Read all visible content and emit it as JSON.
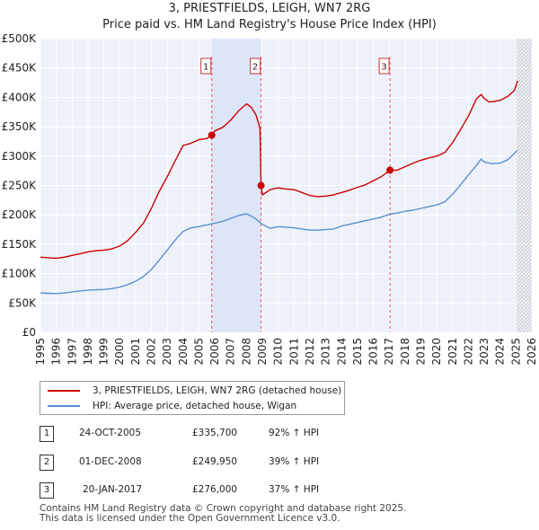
{
  "chart_data": {
    "type": "line",
    "title": "3, PRIESTFIELDS, LEIGH, WN7 2RG",
    "subtitle": "Price paid vs. HM Land Registry's House Price Index (HPI)",
    "xlim": [
      1995,
      2026
    ],
    "ylim": [
      0,
      500000
    ],
    "x_ticks": [
      1995,
      1996,
      1997,
      1998,
      1999,
      2000,
      2001,
      2002,
      2003,
      2004,
      2005,
      2006,
      2007,
      2008,
      2009,
      2010,
      2011,
      2012,
      2013,
      2014,
      2015,
      2016,
      2017,
      2018,
      2019,
      2020,
      2021,
      2022,
      2023,
      2024,
      2025,
      2026
    ],
    "y_ticks": [
      0,
      50000,
      100000,
      150000,
      200000,
      250000,
      300000,
      350000,
      400000,
      450000,
      500000
    ],
    "y_tick_labels": [
      "£0",
      "£50K",
      "£100K",
      "£150K",
      "£200K",
      "£250K",
      "£300K",
      "£350K",
      "£400K",
      "£450K",
      "£500K"
    ],
    "shaded_periods": [
      [
        2005.81,
        2008.92
      ]
    ],
    "future_hatch_start": 2025.0,
    "series": [
      {
        "name": "3, PRIESTFIELDS, LEIGH, WN7 2RG (detached house)",
        "color": "#cc0000",
        "x": [
          1995.0,
          1995.5,
          1996.0,
          1996.5,
          1997.0,
          1997.5,
          1998.0,
          1998.5,
          1999.0,
          1999.5,
          2000.0,
          2000.5,
          2001.0,
          2001.5,
          2002.0,
          2002.5,
          2003.0,
          2003.5,
          2004.0,
          2004.5,
          2005.0,
          2005.5,
          2005.81,
          2006.0,
          2006.5,
          2007.0,
          2007.5,
          2008.0,
          2008.3,
          2008.6,
          2008.85,
          2008.92,
          2009.0,
          2009.5,
          2010.0,
          2010.5,
          2011.0,
          2011.5,
          2012.0,
          2012.5,
          2013.0,
          2013.5,
          2014.0,
          2014.5,
          2015.0,
          2015.5,
          2016.0,
          2016.5,
          2017.05,
          2017.5,
          2018.0,
          2018.5,
          2019.0,
          2019.5,
          2020.0,
          2020.5,
          2021.0,
          2021.5,
          2022.0,
          2022.5,
          2022.8,
          2023.0,
          2023.3,
          2023.6,
          2024.0,
          2024.5,
          2024.9,
          2025.1
        ],
        "values": [
          128000,
          127000,
          126000,
          128000,
          131000,
          134000,
          137000,
          139000,
          140000,
          142000,
          147000,
          156000,
          170000,
          186000,
          211000,
          240000,
          265000,
          292000,
          318000,
          322000,
          328000,
          330000,
          335700,
          343000,
          349000,
          361000,
          377000,
          389000,
          383000,
          370000,
          348000,
          249950,
          234000,
          243000,
          246000,
          244000,
          243000,
          238000,
          233000,
          231000,
          232000,
          234000,
          238000,
          242000,
          247000,
          251000,
          258000,
          265000,
          276000,
          276000,
          282000,
          288000,
          293000,
          297000,
          300000,
          306000,
          323000,
          345000,
          368000,
          397000,
          405000,
          398000,
          392000,
          393000,
          395000,
          402000,
          412000,
          428000
        ]
      },
      {
        "name": "HPI: Average price, detached house, Wigan",
        "color": "#5b8fcf",
        "x": [
          1995.0,
          1995.5,
          1996.0,
          1996.5,
          1997.0,
          1997.5,
          1998.0,
          1998.5,
          1999.0,
          1999.5,
          2000.0,
          2000.5,
          2001.0,
          2001.5,
          2002.0,
          2002.5,
          2003.0,
          2003.5,
          2004.0,
          2004.5,
          2005.0,
          2005.5,
          2006.0,
          2006.5,
          2007.0,
          2007.5,
          2008.0,
          2008.5,
          2009.0,
          2009.5,
          2010.0,
          2010.5,
          2011.0,
          2011.5,
          2012.0,
          2012.5,
          2013.0,
          2013.5,
          2014.0,
          2014.5,
          2015.0,
          2015.5,
          2016.0,
          2016.5,
          2017.0,
          2017.5,
          2018.0,
          2018.5,
          2019.0,
          2019.5,
          2020.0,
          2020.5,
          2021.0,
          2021.5,
          2022.0,
          2022.5,
          2022.8,
          2023.0,
          2023.5,
          2024.0,
          2024.5,
          2025.1
        ],
        "values": [
          67000,
          66500,
          66000,
          67000,
          69000,
          70500,
          72000,
          72500,
          73000,
          74500,
          77000,
          81000,
          87000,
          95000,
          107000,
          123000,
          140000,
          157000,
          172000,
          178000,
          180000,
          183000,
          186000,
          189000,
          194000,
          199000,
          202000,
          195000,
          184000,
          177000,
          180000,
          179000,
          178000,
          176000,
          174000,
          174000,
          175000,
          176000,
          181000,
          184000,
          187000,
          190000,
          193000,
          196000,
          201000,
          203000,
          206000,
          208000,
          211000,
          214000,
          217000,
          222000,
          235000,
          251000,
          268000,
          284000,
          295000,
          290000,
          287000,
          288000,
          294000,
          310000
        ]
      }
    ],
    "annotations": [
      {
        "label": "1",
        "x": 2005.81,
        "y": 335700
      },
      {
        "label": "2",
        "x": 2008.92,
        "y": 249950
      },
      {
        "label": "3",
        "x": 2017.05,
        "y": 276000
      }
    ]
  },
  "legend": {
    "items": [
      {
        "label": "3, PRIESTFIELDS, LEIGH, WN7 2RG (detached house)",
        "color": "#cc0000"
      },
      {
        "label": "HPI: Average price, detached house, Wigan",
        "color": "#5b8fcf"
      }
    ]
  },
  "transactions": [
    {
      "num": "1",
      "date": "24-OCT-2005",
      "price": "£335,700",
      "hpi": "92% ↑ HPI"
    },
    {
      "num": "2",
      "date": "01-DEC-2008",
      "price": "£249,950",
      "hpi": "39% ↑ HPI"
    },
    {
      "num": "3",
      "date": "20-JAN-2017",
      "price": "£276,000",
      "hpi": "37% ↑ HPI"
    }
  ],
  "footer": {
    "line1": "Contains HM Land Registry data © Crown copyright and database right 2025.",
    "line2": "This data is licensed under the Open Government Licence v3.0."
  }
}
